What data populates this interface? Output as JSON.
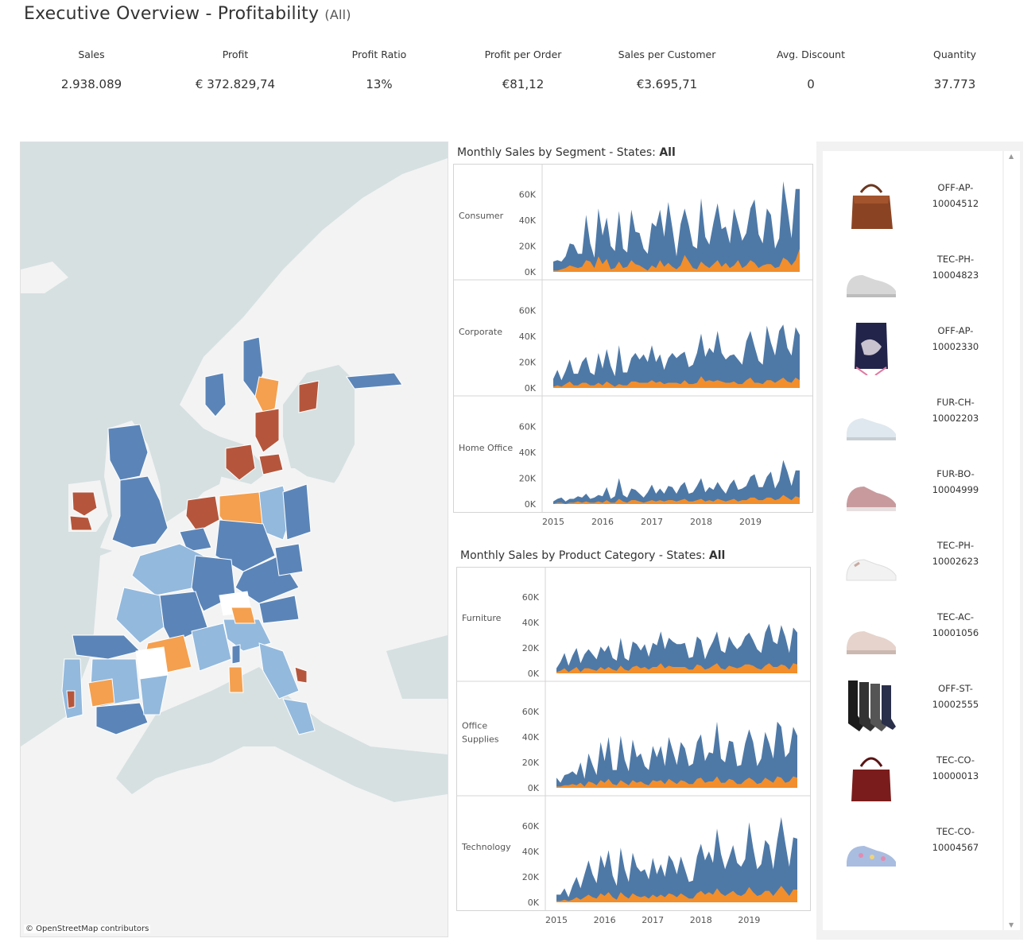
{
  "title": "Executive Overview - Profitability",
  "title_filter": "(All)",
  "kpis": [
    {
      "label": "Sales",
      "value": "2.938.089"
    },
    {
      "label": "Profit",
      "value": "€ 372.829,74"
    },
    {
      "label": "Profit Ratio",
      "value": "13%"
    },
    {
      "label": "Profit per Order",
      "value": "€81,12"
    },
    {
      "label": "Sales per Customer",
      "value": "€3.695,71"
    },
    {
      "label": "Avg. Discount",
      "value": "0"
    },
    {
      "label": "Quantity",
      "value": "37.773"
    }
  ],
  "map": {
    "credit": "© OpenStreetMap contributors",
    "colors": {
      "water": "#d6e0e1",
      "land": "#f3f3f3",
      "dark_blue": "#5b85b8",
      "light_blue": "#93b9dd",
      "orange": "#f4a04f",
      "brown": "#b5563c",
      "white": "#ffffff"
    }
  },
  "colors": {
    "series_total": "#4e79a7",
    "series_profit": "#f28e2b"
  },
  "segment_chart": {
    "title_prefix": "Monthly Sales by Segment - States: ",
    "title_value": "All"
  },
  "category_chart": {
    "title_prefix": "Monthly Sales by Product Category - States: ",
    "title_value": "All"
  },
  "chart_data": [
    {
      "type": "area",
      "title": "Monthly Sales by Segment - States: All",
      "x_ticks": [
        "2015",
        "2016",
        "2017",
        "2018",
        "2019"
      ],
      "y_ticks": [
        "0K",
        "20K",
        "40K",
        "60K"
      ],
      "ylim": [
        0,
        70000
      ],
      "series": [
        {
          "name": "Consumer",
          "sales": [
            8,
            9,
            8,
            12,
            22,
            21,
            14,
            14,
            44,
            22,
            11,
            49,
            28,
            42,
            20,
            16,
            47,
            18,
            15,
            48,
            31,
            30,
            18,
            14,
            38,
            35,
            48,
            27,
            54,
            34,
            12,
            37,
            49,
            36,
            20,
            18,
            57,
            27,
            21,
            38,
            53,
            33,
            35,
            22,
            49,
            37,
            24,
            30,
            49,
            56,
            29,
            22,
            49,
            44,
            18,
            26,
            70,
            49,
            26,
            64,
            64
          ],
          "profit": [
            1,
            1,
            2,
            3,
            5,
            4,
            3,
            4,
            9,
            8,
            3,
            12,
            6,
            10,
            2,
            3,
            8,
            3,
            4,
            9,
            6,
            5,
            3,
            1,
            5,
            3,
            9,
            4,
            7,
            4,
            2,
            5,
            13,
            8,
            3,
            2,
            8,
            5,
            3,
            6,
            9,
            4,
            7,
            3,
            5,
            9,
            3,
            5,
            9,
            7,
            3,
            5,
            6,
            6,
            3,
            4,
            11,
            9,
            5,
            9,
            18
          ]
        },
        {
          "name": "Corporate",
          "sales": [
            7,
            14,
            6,
            13,
            22,
            11,
            11,
            20,
            24,
            12,
            10,
            27,
            15,
            30,
            17,
            9,
            33,
            12,
            12,
            23,
            27,
            22,
            26,
            20,
            33,
            20,
            26,
            14,
            23,
            27,
            23,
            26,
            28,
            16,
            18,
            27,
            42,
            24,
            31,
            27,
            44,
            27,
            22,
            25,
            26,
            22,
            18,
            36,
            44,
            32,
            21,
            18,
            48,
            35,
            25,
            44,
            49,
            31,
            25,
            47,
            41
          ],
          "profit": [
            1,
            2,
            1,
            3,
            5,
            2,
            2,
            4,
            4,
            2,
            2,
            4,
            2,
            5,
            3,
            1,
            3,
            2,
            2,
            5,
            5,
            4,
            4,
            4,
            6,
            4,
            5,
            3,
            4,
            4,
            4,
            3,
            6,
            3,
            3,
            4,
            9,
            5,
            6,
            5,
            6,
            5,
            4,
            4,
            5,
            3,
            3,
            6,
            8,
            4,
            4,
            3,
            6,
            6,
            4,
            6,
            8,
            5,
            4,
            8,
            6
          ]
        },
        {
          "name": "Home Office",
          "sales": [
            2,
            4,
            5,
            2,
            4,
            4,
            6,
            5,
            8,
            4,
            5,
            7,
            6,
            13,
            4,
            6,
            20,
            7,
            5,
            12,
            11,
            8,
            5,
            9,
            15,
            8,
            12,
            8,
            14,
            13,
            8,
            14,
            17,
            8,
            9,
            14,
            20,
            9,
            13,
            11,
            17,
            12,
            8,
            15,
            19,
            11,
            12,
            14,
            21,
            23,
            13,
            13,
            21,
            25,
            12,
            18,
            34,
            25,
            14,
            26,
            26
          ],
          "profit": [
            0,
            1,
            1,
            0,
            1,
            1,
            2,
            1,
            2,
            1,
            1,
            2,
            1,
            3,
            1,
            1,
            4,
            2,
            1,
            3,
            3,
            2,
            1,
            2,
            3,
            2,
            3,
            2,
            3,
            3,
            2,
            3,
            4,
            2,
            2,
            3,
            4,
            2,
            3,
            2,
            4,
            3,
            2,
            3,
            4,
            2,
            3,
            3,
            5,
            5,
            3,
            3,
            5,
            5,
            3,
            4,
            7,
            5,
            3,
            6,
            5
          ]
        }
      ]
    },
    {
      "type": "area",
      "title": "Monthly Sales by Product Category - States: All",
      "x_ticks": [
        "2015",
        "2016",
        "2017",
        "2018",
        "2019"
      ],
      "y_ticks": [
        "0K",
        "20K",
        "40K",
        "60K"
      ],
      "ylim": [
        0,
        70000
      ],
      "series": [
        {
          "name": "Furniture",
          "sales": [
            4,
            9,
            16,
            6,
            14,
            20,
            8,
            15,
            19,
            15,
            11,
            21,
            17,
            22,
            12,
            10,
            28,
            12,
            10,
            25,
            23,
            18,
            23,
            13,
            24,
            22,
            33,
            19,
            28,
            25,
            23,
            23,
            24,
            12,
            13,
            29,
            26,
            11,
            19,
            25,
            33,
            18,
            16,
            29,
            23,
            19,
            22,
            29,
            32,
            26,
            19,
            16,
            32,
            39,
            25,
            23,
            38,
            29,
            16,
            36,
            32
          ],
          "profit": [
            1,
            2,
            4,
            1,
            3,
            5,
            1,
            4,
            4,
            3,
            2,
            5,
            3,
            5,
            3,
            2,
            6,
            3,
            2,
            5,
            6,
            4,
            5,
            3,
            5,
            5,
            8,
            4,
            6,
            5,
            5,
            5,
            5,
            3,
            3,
            7,
            6,
            3,
            4,
            6,
            8,
            4,
            3,
            6,
            5,
            4,
            5,
            7,
            7,
            6,
            4,
            3,
            6,
            8,
            5,
            5,
            7,
            6,
            3,
            8,
            7
          ]
        },
        {
          "name": "Office Supplies",
          "sales": [
            8,
            4,
            10,
            11,
            13,
            10,
            20,
            7,
            27,
            18,
            10,
            36,
            21,
            40,
            14,
            14,
            41,
            22,
            13,
            38,
            24,
            27,
            17,
            14,
            33,
            24,
            33,
            17,
            40,
            29,
            18,
            36,
            31,
            17,
            19,
            36,
            42,
            21,
            28,
            27,
            52,
            23,
            20,
            37,
            36,
            17,
            18,
            35,
            46,
            36,
            17,
            23,
            44,
            35,
            23,
            52,
            48,
            24,
            28,
            48,
            41
          ],
          "profit": [
            1,
            1,
            2,
            2,
            3,
            2,
            4,
            1,
            5,
            4,
            2,
            6,
            4,
            7,
            3,
            2,
            6,
            4,
            2,
            6,
            4,
            5,
            3,
            2,
            6,
            5,
            6,
            3,
            7,
            5,
            3,
            6,
            5,
            3,
            3,
            7,
            8,
            4,
            5,
            5,
            9,
            4,
            4,
            7,
            6,
            3,
            3,
            6,
            8,
            6,
            3,
            4,
            8,
            6,
            4,
            9,
            8,
            4,
            5,
            9,
            8
          ]
        },
        {
          "name": "Technology",
          "sales": [
            6,
            6,
            11,
            4,
            13,
            20,
            11,
            22,
            33,
            22,
            15,
            37,
            27,
            41,
            21,
            13,
            43,
            26,
            16,
            39,
            28,
            24,
            26,
            18,
            35,
            22,
            30,
            20,
            37,
            32,
            22,
            36,
            26,
            16,
            17,
            36,
            46,
            33,
            40,
            31,
            58,
            38,
            26,
            35,
            45,
            31,
            28,
            34,
            63,
            43,
            26,
            30,
            49,
            45,
            26,
            49,
            67,
            47,
            28,
            51,
            50
          ],
          "profit": [
            1,
            1,
            2,
            1,
            2,
            4,
            2,
            4,
            6,
            4,
            3,
            7,
            5,
            8,
            4,
            2,
            8,
            5,
            3,
            7,
            5,
            4,
            5,
            3,
            6,
            4,
            6,
            4,
            7,
            6,
            4,
            7,
            5,
            3,
            3,
            7,
            9,
            6,
            8,
            6,
            11,
            7,
            5,
            7,
            9,
            6,
            5,
            7,
            12,
            8,
            5,
            6,
            9,
            9,
            5,
            9,
            13,
            9,
            5,
            10,
            10
          ]
        }
      ]
    }
  ],
  "products": [
    {
      "code": "OFF-AP-10004512",
      "code_lines": [
        "OFF-AP-",
        "10004512"
      ],
      "icon": "handbag-brown-icon"
    },
    {
      "code": "TEC-PH-10004823",
      "code_lines": [
        "TEC-PH-",
        "10004823"
      ],
      "icon": "shoe-silver-icon"
    },
    {
      "code": "OFF-AP-10002330",
      "code_lines": [
        "OFF-AP-",
        "10002330"
      ],
      "icon": "drawstring-bag-icon"
    },
    {
      "code": "FUR-CH-10002203",
      "code_lines": [
        "FUR-CH-",
        "10002203"
      ],
      "icon": "shoe-light-blue-icon"
    },
    {
      "code": "FUR-BO-10004999",
      "code_lines": [
        "FUR-BO-",
        "10004999"
      ],
      "icon": "shoe-pink-icon"
    },
    {
      "code": "TEC-PH-10002623",
      "code_lines": [
        "TEC-PH-",
        "10002623"
      ],
      "icon": "shoe-white-icon"
    },
    {
      "code": "TEC-AC-10001056",
      "code_lines": [
        "TEC-AC-",
        "10001056"
      ],
      "icon": "shoe-beige-icon"
    },
    {
      "code": "OFF-ST-10002555",
      "code_lines": [
        "OFF-ST-",
        "10002555"
      ],
      "icon": "socks-icon"
    },
    {
      "code": "TEC-CO-10000013",
      "code_lines": [
        "TEC-CO-",
        "10000013"
      ],
      "icon": "handbag-red-icon"
    },
    {
      "code": "TEC-CO-10004567",
      "code_lines": [
        "TEC-CO-",
        "10004567"
      ],
      "icon": "shoe-floral-icon"
    }
  ]
}
